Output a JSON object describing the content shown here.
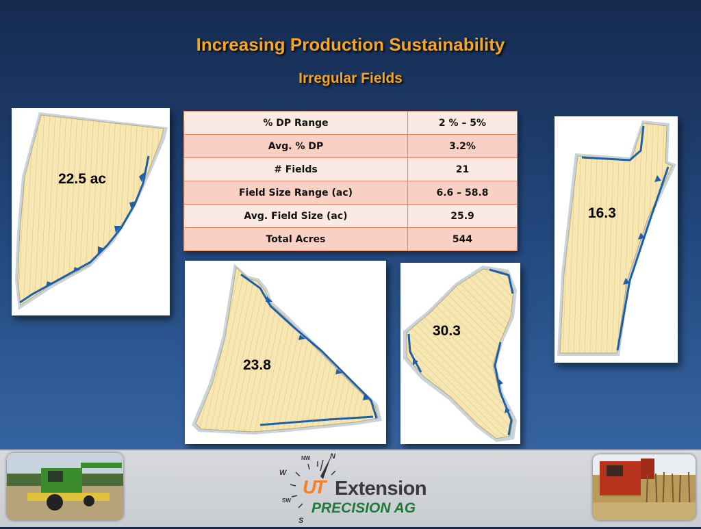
{
  "title": "Increasing Production Sustainability",
  "subtitle": "Irregular Fields",
  "table": {
    "rows": [
      {
        "label": "% DP Range",
        "value": "2 % – 5%"
      },
      {
        "label": "Avg. % DP",
        "value": "3.2%"
      },
      {
        "label": "# Fields",
        "value": "21"
      },
      {
        "label": "Field Size Range (ac)",
        "value": "6.6 – 58.8"
      },
      {
        "label": "Avg. Field Size (ac)",
        "value": "25.9"
      },
      {
        "label": "Total Acres",
        "value": "544"
      }
    ]
  },
  "fields": [
    {
      "acres": "22.5 ac"
    },
    {
      "acres": "23.8"
    },
    {
      "acres": "30.3"
    },
    {
      "acres": "16.3"
    }
  ],
  "footer": {
    "logo_ut": "UT",
    "logo_extension": "Extension",
    "logo_precision": "PRECISION AG",
    "compass": {
      "n": "N",
      "nw": "NW",
      "w": "W",
      "sw": "SW",
      "s": "S"
    }
  },
  "colors": {
    "title": "#f5a623",
    "field_fill": "#f7e6b0",
    "dp_blue": "#1f5fa8",
    "table_border": "#e8875d",
    "ut_orange": "#f58025",
    "precision_green": "#1f7a3a"
  }
}
